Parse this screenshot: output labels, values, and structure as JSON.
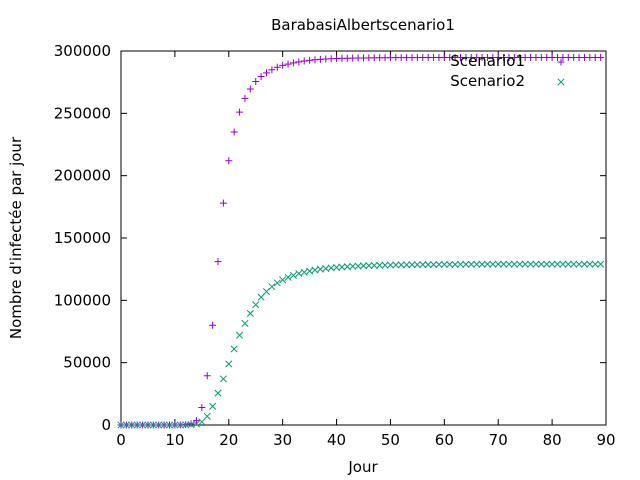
{
  "chart_data": {
    "type": "scatter",
    "title": "BarabasiAlbertscenario1",
    "xlabel": "Jour",
    "ylabel": "Nombre d'infectée par jour",
    "xlim": [
      0,
      90
    ],
    "ylim": [
      0,
      300000
    ],
    "xticks": [
      0,
      10,
      20,
      30,
      40,
      50,
      60,
      70,
      80,
      90
    ],
    "yticks": [
      0,
      50000,
      100000,
      150000,
      200000,
      250000,
      300000
    ],
    "grid": false,
    "legend_position": "top-right",
    "series": [
      {
        "name": "Scenario1",
        "marker": "+",
        "color": "#9400d3",
        "x": [
          0,
          1,
          2,
          3,
          4,
          5,
          6,
          7,
          8,
          9,
          10,
          11,
          12,
          13,
          14,
          15,
          16,
          17,
          18,
          19,
          20,
          21,
          22,
          23,
          24,
          25,
          26,
          27,
          28,
          29,
          30,
          31,
          32,
          33,
          34,
          35,
          36,
          37,
          38,
          39,
          40,
          41,
          42,
          43,
          44,
          45,
          46,
          47,
          48,
          49,
          50,
          51,
          52,
          53,
          54,
          55,
          56,
          57,
          58,
          59,
          60,
          61,
          62,
          63,
          64,
          65,
          66,
          67,
          68,
          69,
          70,
          71,
          72,
          73,
          74,
          75,
          76,
          77,
          78,
          79,
          80,
          81,
          82,
          83,
          84,
          85,
          86,
          87,
          88,
          89
        ],
        "y": [
          0,
          0,
          0,
          0,
          0,
          0,
          0,
          0,
          0,
          0,
          0,
          50,
          300,
          1000,
          3500,
          14000,
          39500,
          80000,
          131000,
          178000,
          212000,
          235000,
          251000,
          262000,
          269500,
          275500,
          279500,
          282500,
          285000,
          287000,
          288500,
          289500,
          290500,
          291300,
          292000,
          292500,
          293000,
          293300,
          293600,
          293800,
          294000,
          294100,
          294200,
          294300,
          294400,
          294400,
          294500,
          294500,
          294600,
          294600,
          294600,
          294700,
          294700,
          294700,
          294700,
          294700,
          294800,
          294800,
          294800,
          294800,
          294800,
          294800,
          294800,
          294800,
          294800,
          294800,
          294800,
          294800,
          294800,
          294800,
          294800,
          294800,
          294800,
          294800,
          294800,
          294800,
          294800,
          294800,
          294800,
          294800,
          294800,
          294800,
          294800,
          294800,
          294800,
          294800,
          294800,
          294800,
          294800,
          294800
        ]
      },
      {
        "name": "Scenario2",
        "marker": "x",
        "color": "#009e73",
        "x": [
          0,
          1,
          2,
          3,
          4,
          5,
          6,
          7,
          8,
          9,
          10,
          11,
          12,
          13,
          14,
          15,
          16,
          17,
          18,
          19,
          20,
          21,
          22,
          23,
          24,
          25,
          26,
          27,
          28,
          29,
          30,
          31,
          32,
          33,
          34,
          35,
          36,
          37,
          38,
          39,
          40,
          41,
          42,
          43,
          44,
          45,
          46,
          47,
          48,
          49,
          50,
          51,
          52,
          53,
          54,
          55,
          56,
          57,
          58,
          59,
          60,
          61,
          62,
          63,
          64,
          65,
          66,
          67,
          68,
          69,
          70,
          71,
          72,
          73,
          74,
          75,
          76,
          77,
          78,
          79,
          80,
          81,
          82,
          83,
          84,
          85,
          86,
          87,
          88,
          89
        ],
        "y": [
          0,
          0,
          0,
          0,
          0,
          0,
          0,
          0,
          0,
          0,
          0,
          0,
          100,
          300,
          800,
          2500,
          7000,
          15000,
          25500,
          37000,
          49000,
          61000,
          72000,
          81500,
          89500,
          96500,
          102500,
          107000,
          111000,
          114000,
          116500,
          118500,
          120000,
          121500,
          122500,
          123500,
          124300,
          125000,
          125500,
          126000,
          126400,
          126700,
          127000,
          127300,
          127500,
          127700,
          127900,
          128000,
          128100,
          128200,
          128300,
          128400,
          128500,
          128500,
          128600,
          128600,
          128700,
          128700,
          128700,
          128800,
          128800,
          128800,
          128800,
          128900,
          128900,
          128900,
          128900,
          128900,
          129000,
          129000,
          129000,
          129000,
          129000,
          129000,
          129000,
          129000,
          129000,
          129000,
          129000,
          129000,
          129000,
          129000,
          129000,
          129000,
          129000,
          129000,
          129000,
          129000,
          129000,
          129000
        ]
      }
    ]
  }
}
